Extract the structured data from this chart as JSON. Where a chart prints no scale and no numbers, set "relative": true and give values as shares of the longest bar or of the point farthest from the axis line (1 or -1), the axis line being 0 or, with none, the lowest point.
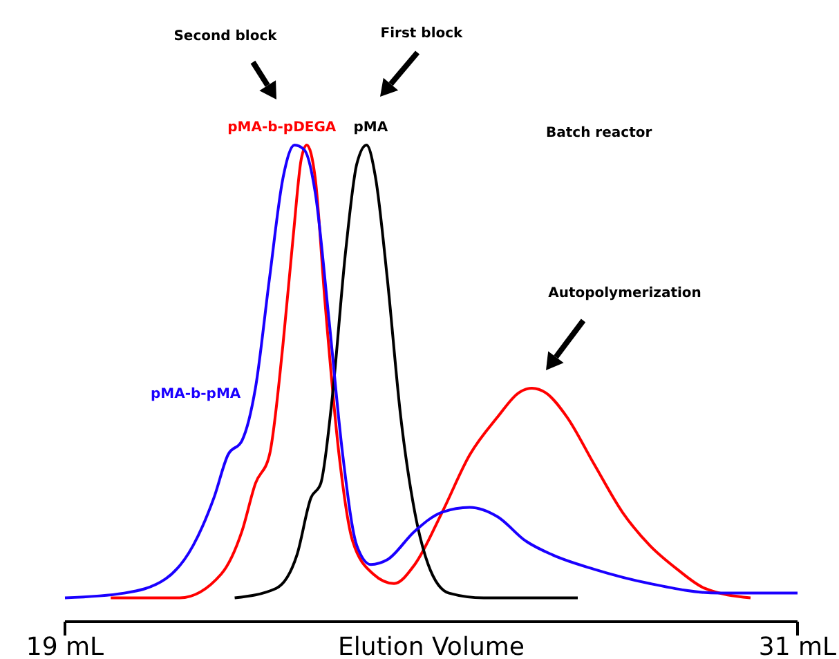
{
  "chart_data": {
    "type": "line",
    "relative": true,
    "xlabel": "Elution Volume",
    "xlim": [
      19,
      31
    ],
    "xticks": [
      {
        "value": 19,
        "label": "19 mL"
      },
      {
        "value": 31,
        "label": "31 mL"
      }
    ],
    "series": [
      {
        "name": "pMA-b-pDEGA",
        "color": "#ff0000",
        "x": [
          19.75,
          20.88,
          21.56,
          21.9,
          22.12,
          22.35,
          22.57,
          22.74,
          22.87,
          22.96,
          23.1,
          23.26,
          23.49,
          23.71,
          24.05,
          24.39,
          24.73,
          25.18,
          25.63,
          26.09,
          26.43,
          26.65,
          26.88,
          27.22,
          27.67,
          28.13,
          28.58,
          29.03,
          29.48,
          30.23
        ],
        "values": [
          0.05,
          0.05,
          0.1,
          0.19,
          0.29,
          0.35,
          0.58,
          0.81,
          0.97,
          1.0,
          0.93,
          0.67,
          0.35,
          0.17,
          0.1,
          0.08,
          0.12,
          0.23,
          0.35,
          0.43,
          0.48,
          0.49,
          0.48,
          0.43,
          0.33,
          0.23,
          0.16,
          0.11,
          0.07,
          0.05
        ]
      },
      {
        "name": "pMA",
        "color": "#000000",
        "x": [
          21.78,
          22.46,
          22.8,
          23.03,
          23.19,
          23.37,
          23.6,
          23.78,
          23.94,
          24.09,
          24.28,
          24.5,
          24.73,
          24.95,
          25.29,
          25.86,
          27.4
        ],
        "values": [
          0.05,
          0.07,
          0.14,
          0.26,
          0.29,
          0.46,
          0.78,
          0.96,
          1.0,
          0.93,
          0.72,
          0.43,
          0.23,
          0.12,
          0.06,
          0.05,
          0.05
        ]
      },
      {
        "name": "pMA-b-pMA",
        "color": "#1a00ff",
        "x": [
          19.0,
          19.97,
          20.65,
          21.1,
          21.44,
          21.67,
          21.9,
          22.12,
          22.35,
          22.57,
          22.76,
          22.92,
          23.1,
          23.32,
          23.55,
          23.78,
          24.01,
          24.28,
          24.73,
          25.18,
          25.63,
          26.09,
          26.54,
          26.99,
          27.67,
          28.58,
          29.71,
          31.0
        ],
        "values": [
          0.05,
          0.06,
          0.09,
          0.16,
          0.26,
          0.35,
          0.38,
          0.49,
          0.72,
          0.93,
          1.0,
          0.99,
          0.9,
          0.64,
          0.35,
          0.16,
          0.12,
          0.13,
          0.19,
          0.23,
          0.24,
          0.22,
          0.17,
          0.14,
          0.11,
          0.08,
          0.06,
          0.06
        ]
      }
    ],
    "annotations": [
      "Second block",
      "First block",
      "Autopolymerization",
      "Batch reactor"
    ],
    "line_style": "solid",
    "marker": "none"
  }
}
